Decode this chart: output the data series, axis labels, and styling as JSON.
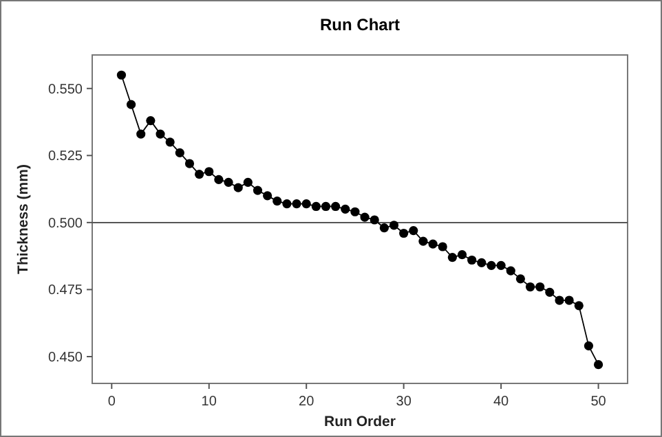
{
  "chart_data": {
    "type": "line",
    "title": "Run Chart",
    "xlabel": "Run Order",
    "ylabel": "Thickness (mm)",
    "x": [
      1,
      2,
      3,
      4,
      5,
      6,
      7,
      8,
      9,
      10,
      11,
      12,
      13,
      14,
      15,
      16,
      17,
      18,
      19,
      20,
      21,
      22,
      23,
      24,
      25,
      26,
      27,
      28,
      29,
      30,
      31,
      32,
      33,
      34,
      35,
      36,
      37,
      38,
      39,
      40,
      41,
      42,
      43,
      44,
      45,
      46,
      47,
      48,
      49,
      50
    ],
    "series": [
      {
        "color": "#000000",
        "values": [
          0.555,
          0.544,
          0.533,
          0.538,
          0.533,
          0.53,
          0.526,
          0.522,
          0.518,
          0.519,
          0.516,
          0.515,
          0.513,
          0.515,
          0.512,
          0.51,
          0.508,
          0.507,
          0.507,
          0.507,
          0.506,
          0.506,
          0.506,
          0.505,
          0.504,
          0.502,
          0.501,
          0.498,
          0.499,
          0.496,
          0.497,
          0.493,
          0.492,
          0.491,
          0.487,
          0.488,
          0.486,
          0.485,
          0.484,
          0.484,
          0.482,
          0.479,
          0.476,
          0.476,
          0.474,
          0.471,
          0.471,
          0.469,
          0.454,
          0.447
        ]
      }
    ],
    "xlim": [
      -2,
      53
    ],
    "xticks": [
      0,
      10,
      20,
      30,
      40,
      50
    ],
    "ylim": [
      0.44,
      0.5625
    ],
    "yticks": [
      {
        "value": 0.45,
        "label": "0.450"
      },
      {
        "value": 0.475,
        "label": "0.475"
      },
      {
        "value": 0.5,
        "label": "0.500"
      },
      {
        "value": 0.525,
        "label": "0.525"
      },
      {
        "value": 0.55,
        "label": "0.550"
      }
    ],
    "ref_lines": [
      {
        "axis": "y",
        "value": 0.5,
        "color": "#555555"
      }
    ],
    "marker": "circle",
    "line_style": "solid"
  }
}
